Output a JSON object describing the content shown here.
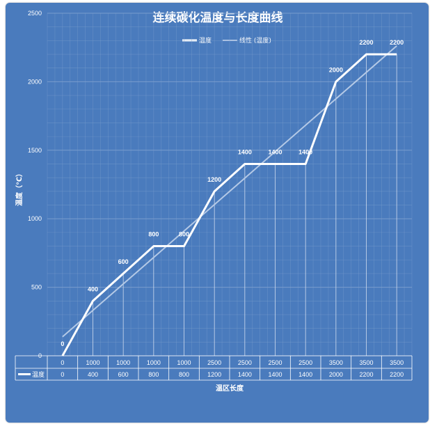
{
  "chart_data": {
    "type": "line",
    "title": "连续碳化温度与长度曲线",
    "xlabel": "温区长度",
    "ylabel": "温度（℃）",
    "ylim": [
      0,
      2500
    ],
    "y_ticks": [
      "0",
      "500",
      "1000",
      "1500",
      "2000",
      "2500"
    ],
    "categories": [
      "0",
      "1000",
      "1000",
      "1000",
      "1000",
      "2500",
      "2500",
      "2500",
      "2500",
      "3500",
      "3500",
      "3500"
    ],
    "series": [
      {
        "name": "温度",
        "values": [
          0,
          400,
          600,
          800,
          800,
          1200,
          1400,
          1400,
          1400,
          2000,
          2200,
          2200
        ],
        "data_labels": [
          "0",
          "400",
          "600",
          "800",
          "800",
          "1200",
          "1400",
          "1400",
          "1400",
          "2000",
          "2200",
          "2200"
        ],
        "color": "#ffffff"
      },
      {
        "name": "线性 (温度)",
        "type": "trendline",
        "color": "#b4c9e6"
      }
    ],
    "data_table": {
      "row_label": "温度",
      "values": [
        "0",
        "400",
        "600",
        "800",
        "800",
        "1200",
        "1400",
        "1400",
        "1400",
        "2000",
        "2200",
        "2200"
      ]
    },
    "legend_position": "top",
    "grid": true
  },
  "colors": {
    "background": "#4a7bbd",
    "grid": "#7ea0cf",
    "series_main": "#ffffff",
    "series_trend": "#b4c9e6"
  }
}
